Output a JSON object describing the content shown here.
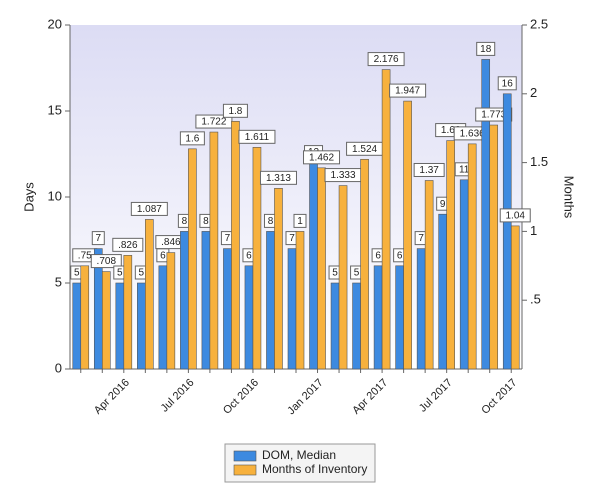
{
  "chart_data": {
    "type": "bar",
    "categories": [
      null,
      null,
      "Apr 2016",
      null,
      null,
      "Jul 2016",
      null,
      null,
      "Oct 2016",
      null,
      null,
      "Jan 2017",
      null,
      null,
      "Apr 2017",
      null,
      null,
      "Jul 2017",
      null,
      null,
      "Oct 2017"
    ],
    "ylabel": "Days",
    "y2label": "Months",
    "ylim": [
      0,
      20
    ],
    "yticks": [
      0,
      5,
      10,
      15,
      20
    ],
    "y2lim": [
      0,
      2.5
    ],
    "y2ticks": [
      {
        "value": 0.5,
        "label": ".5"
      },
      1,
      1.5,
      2,
      2.5
    ],
    "grid": false,
    "legend": "bottom",
    "series": [
      {
        "name": "DOM, Median",
        "color": "#3d8ae0",
        "values": [
          5,
          7,
          5,
          5,
          6,
          8,
          8,
          7,
          6,
          8,
          7,
          12,
          5,
          5,
          6,
          6,
          7,
          9,
          11,
          18,
          16
        ]
      },
      {
        "name": "Months of Inventory",
        "color": "#f7b13d",
        "axis": "y2",
        "values": [
          0.75,
          0.708,
          0.826,
          1.087,
          0.846,
          1.6,
          1.722,
          1.8,
          1.611,
          1.313,
          1,
          1.462,
          1.333,
          1.524,
          2.176,
          1.947,
          1.37,
          1.66,
          1.636,
          1.773,
          1.04
        ],
        "value_labels": [
          ".75",
          ".708",
          ".826",
          "1.087",
          ".846",
          "1.6",
          "1.722",
          "1.8",
          "1.611",
          "1.313",
          "1",
          "1.462",
          "1.333",
          "1.524",
          "2.176",
          "1.947",
          "1.37",
          "1.66",
          "1.636",
          "1.773",
          "1.04"
        ]
      }
    ]
  }
}
